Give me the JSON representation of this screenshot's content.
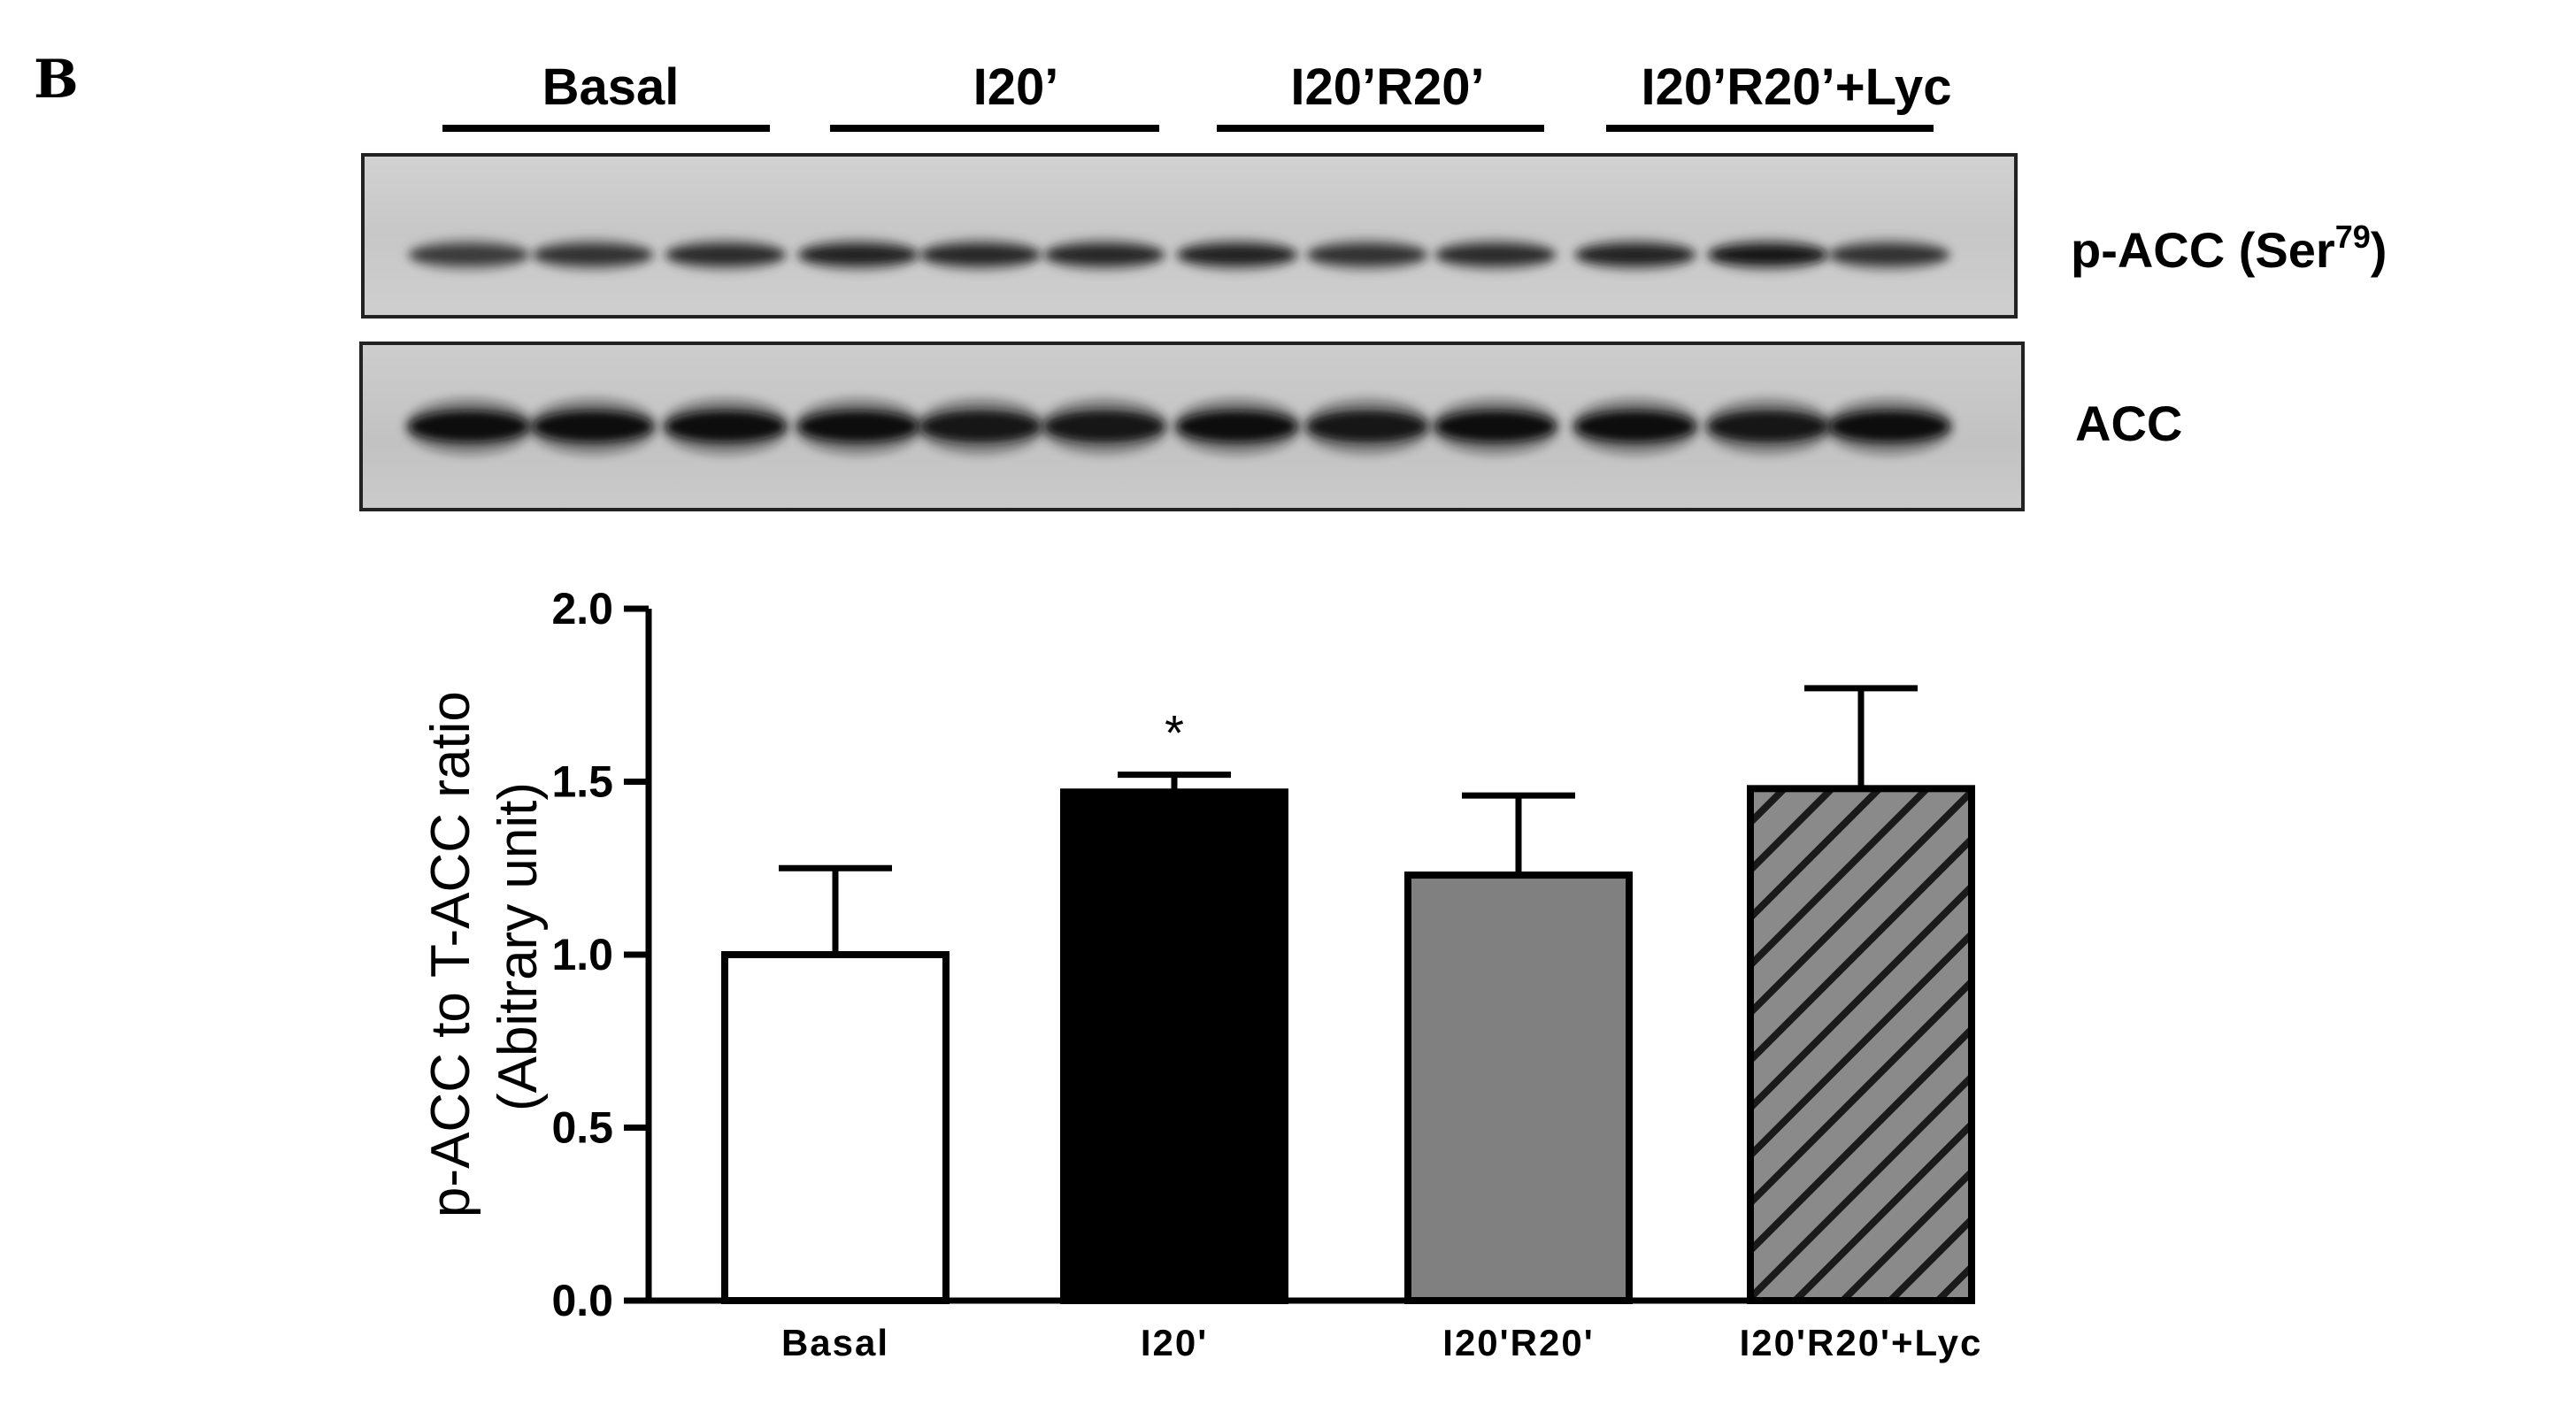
{
  "panel_letter": "B",
  "blot": {
    "groups": [
      "Basal",
      "I20’",
      "I20’R20’",
      "I20’R20’+Lyc"
    ],
    "rows": [
      {
        "label_main": "p-ACC (Ser",
        "label_sup": "79",
        "label_end": ")",
        "intensity": [
          0.55,
          0.65,
          0.7,
          0.8,
          0.75,
          0.75,
          0.8,
          0.65,
          0.72,
          0.8,
          0.9,
          0.65
        ]
      },
      {
        "label": "ACC",
        "intensity": [
          1.0,
          0.95,
          1.0,
          0.95,
          0.9,
          0.92,
          1.0,
          0.9,
          0.95,
          1.0,
          0.92,
          1.0
        ]
      }
    ]
  },
  "chart_data": {
    "type": "bar",
    "categories": [
      "Basal",
      "I20'",
      "I20'R20'",
      "I20'R20'+Lyc"
    ],
    "values": [
      1.0,
      1.47,
      1.23,
      1.48
    ],
    "errors": [
      0.25,
      0.05,
      0.23,
      0.29
    ],
    "fills": [
      "#ffffff",
      "#000000",
      "#808080",
      "hatched-gray"
    ],
    "significance": [
      "",
      "*",
      "",
      ""
    ],
    "ylabel_line1": "p-ACC to T-ACC ratio",
    "ylabel_line2": "(Abitrary unit)",
    "yticks": [
      "0.0",
      "0.5",
      "1.0",
      "1.5",
      "2.0"
    ],
    "ylim": [
      0,
      2.0
    ],
    "grid": false
  }
}
